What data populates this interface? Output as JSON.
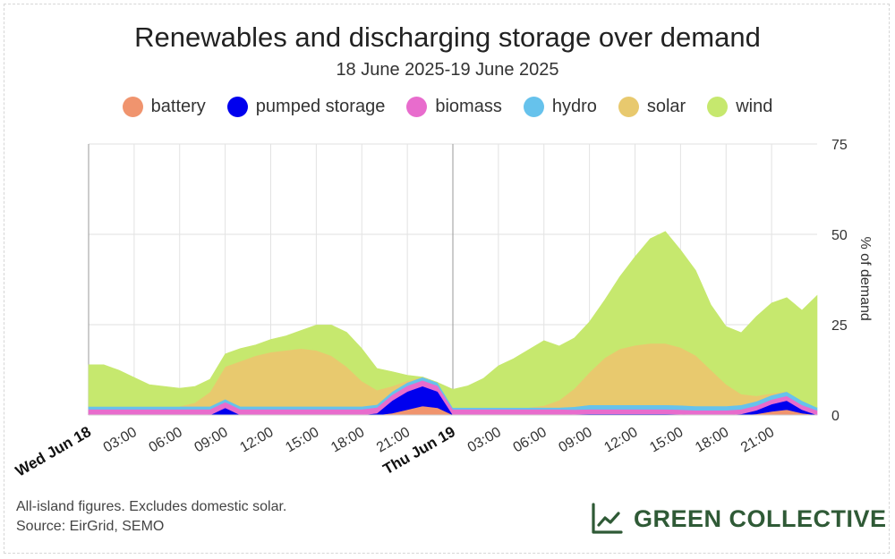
{
  "chart_data": {
    "type": "area",
    "stacked": true,
    "title": "Renewables and discharging storage over demand",
    "subtitle": "18 June 2025-19 June 2025",
    "ylabel": "% of demand",
    "ylim": [
      0,
      75
    ],
    "yticks": [
      0,
      25,
      50,
      75
    ],
    "y_axis_side": "right",
    "grid": true,
    "legend_placement": "top",
    "x_hours": [
      0,
      1,
      2,
      3,
      4,
      5,
      6,
      7,
      8,
      9,
      10,
      11,
      12,
      13,
      14,
      15,
      16,
      17,
      18,
      19,
      20,
      21,
      22,
      23,
      24,
      25,
      26,
      27,
      28,
      29,
      30,
      31,
      32,
      33,
      34,
      35,
      36,
      37,
      38,
      39,
      40,
      41,
      42,
      43,
      44,
      45,
      46,
      47,
      48
    ],
    "x_ticks": [
      {
        "hour": 0,
        "label": "Wed Jun 18",
        "major": true
      },
      {
        "hour": 3,
        "label": "03:00",
        "major": false
      },
      {
        "hour": 6,
        "label": "06:00",
        "major": false
      },
      {
        "hour": 9,
        "label": "09:00",
        "major": false
      },
      {
        "hour": 12,
        "label": "12:00",
        "major": false
      },
      {
        "hour": 15,
        "label": "15:00",
        "major": false
      },
      {
        "hour": 18,
        "label": "18:00",
        "major": false
      },
      {
        "hour": 21,
        "label": "21:00",
        "major": false
      },
      {
        "hour": 24,
        "label": "Thu Jun 19",
        "major": true
      },
      {
        "hour": 27,
        "label": "03:00",
        "major": false
      },
      {
        "hour": 30,
        "label": "06:00",
        "major": false
      },
      {
        "hour": 33,
        "label": "09:00",
        "major": false
      },
      {
        "hour": 36,
        "label": "12:00",
        "major": false
      },
      {
        "hour": 39,
        "label": "15:00",
        "major": false
      },
      {
        "hour": 42,
        "label": "18:00",
        "major": false
      },
      {
        "hour": 45,
        "label": "21:00",
        "major": false
      }
    ],
    "series": [
      {
        "name": "battery",
        "color": "#f0946e",
        "values": [
          0,
          0,
          0,
          0,
          0,
          0,
          0,
          0,
          0,
          0,
          0,
          0,
          0,
          0,
          0,
          0,
          0,
          0,
          0,
          0,
          0.5,
          1.5,
          2.5,
          2,
          0,
          0,
          0,
          0,
          0,
          0,
          0,
          0,
          0,
          0,
          0,
          0,
          0,
          0,
          0,
          0,
          0,
          0,
          0,
          0,
          0.3,
          1,
          1.5,
          0.5,
          0
        ]
      },
      {
        "name": "pumped storage",
        "color": "#0000ee",
        "values": [
          0,
          0,
          0,
          0,
          0,
          0,
          0,
          0,
          0,
          2,
          0,
          0,
          0,
          0,
          0,
          0,
          0,
          0,
          0,
          0.5,
          3.5,
          5,
          5.5,
          4.5,
          0,
          0,
          0,
          0,
          0,
          0,
          0,
          0,
          0.2,
          0.3,
          0.3,
          0.3,
          0.3,
          0.3,
          0.3,
          0.2,
          0,
          0,
          0,
          0.3,
          1,
          2,
          2.5,
          1,
          0
        ]
      },
      {
        "name": "biomass",
        "color": "#e86ccd",
        "values": [
          1.6,
          1.6,
          1.6,
          1.6,
          1.6,
          1.6,
          1.6,
          1.6,
          1.6,
          1.6,
          1.6,
          1.6,
          1.6,
          1.6,
          1.6,
          1.6,
          1.6,
          1.6,
          1.6,
          1.6,
          1.6,
          1.6,
          1.6,
          1.6,
          1.6,
          1.6,
          1.6,
          1.6,
          1.6,
          1.6,
          1.6,
          1.6,
          1.3,
          1.3,
          1.3,
          1.3,
          1.3,
          1.3,
          1.3,
          1.3,
          1.3,
          1.3,
          1.3,
          1.3,
          1.3,
          1.3,
          1.3,
          1.3,
          1.3
        ]
      },
      {
        "name": "hydro",
        "color": "#66c2ec",
        "values": [
          0.8,
          0.8,
          0.8,
          0.8,
          0.8,
          0.8,
          0.8,
          0.8,
          0.8,
          0.8,
          0.8,
          0.8,
          0.8,
          0.8,
          0.8,
          0.8,
          0.8,
          0.8,
          0.8,
          0.8,
          0.9,
          0.9,
          0.9,
          0.9,
          0.5,
          0.5,
          0.5,
          0.5,
          0.5,
          0.5,
          0.5,
          0.5,
          0.8,
          1.2,
          1.2,
          1.2,
          1.2,
          1.2,
          1.2,
          1.2,
          1.2,
          1.2,
          1.2,
          1.2,
          1.2,
          1.2,
          1.2,
          1.2,
          0.8
        ]
      },
      {
        "name": "solar",
        "color": "#e8c96e",
        "values": [
          0,
          0,
          0,
          0,
          0,
          0,
          0,
          1,
          4,
          9,
          12.5,
          14,
          15,
          15.5,
          16,
          15.5,
          14,
          11,
          7,
          4,
          1.5,
          0.5,
          0,
          0,
          0,
          0,
          0,
          0,
          0,
          0,
          0.5,
          2,
          5,
          9,
          13,
          15.5,
          16.5,
          17,
          17,
          16,
          14,
          10,
          6,
          3,
          1.5,
          0.5,
          0,
          0,
          0
        ]
      },
      {
        "name": "wind",
        "color": "#c6e86e",
        "values": [
          11.5,
          11.5,
          10,
          8,
          6,
          5.5,
          5,
          4.5,
          3.5,
          3.5,
          3.5,
          3,
          3.5,
          4,
          5,
          7,
          8.5,
          9.5,
          9,
          6,
          4,
          1.5,
          0,
          0,
          5,
          6,
          8,
          11.5,
          13.5,
          16,
          18,
          15,
          14,
          14,
          16,
          20,
          24.5,
          29,
          31,
          27,
          23.5,
          18,
          16,
          17,
          22,
          25,
          26,
          25,
          31
        ]
      }
    ]
  },
  "footnote": {
    "line1": "All-island figures. Excludes domestic solar.",
    "line2": "Source: EirGrid, SEMO"
  },
  "brand": {
    "name": "GREEN COLLECTIVE",
    "icon": "line-chart-icon",
    "color": "#2f5a36"
  }
}
